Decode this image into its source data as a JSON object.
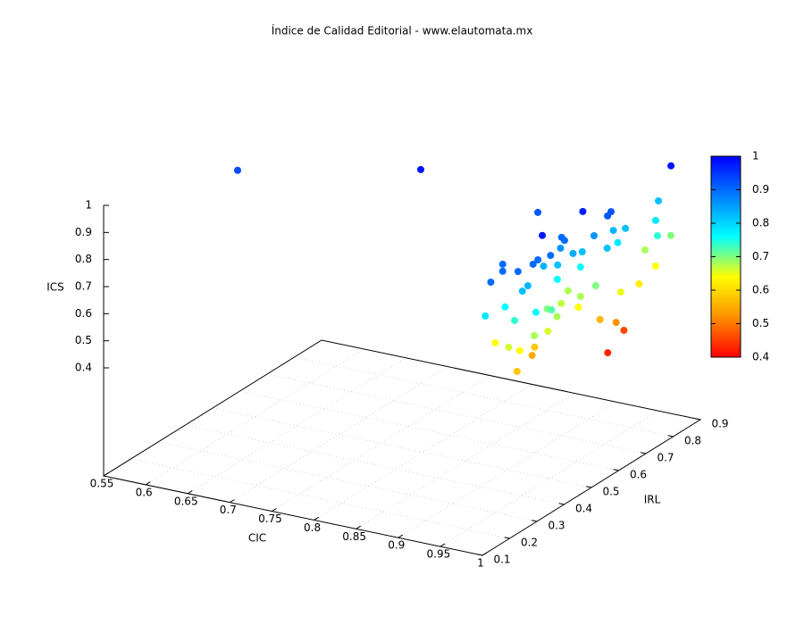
{
  "chart_data": {
    "type": "scatter3d",
    "title": "Índice de Calidad Editorial - www.elautomata.mx",
    "xlabel": "CIC",
    "ylabel": "IRL",
    "zlabel": "ICS",
    "x": [
      0.592,
      0.773,
      0.99,
      0.967,
      0.977,
      0.985,
      0.981,
      0.988,
      0.991,
      0.982,
      0.987,
      0.988,
      0.984,
      0.998,
      0.971,
      0.977,
      0.975,
      0.979,
      0.982,
      0.973,
      0.915,
      0.975,
      0.973,
      0.975,
      0.989,
      0.969,
      0.986,
      0.98,
      0.978,
      0.961,
      0.969,
      0.988,
      0.976,
      0.993,
      0.973,
      0.971,
      0.992,
      0.955,
      0.981,
      0.988,
      0.962,
      0.959,
      0.979,
      0.965,
      0.95,
      0.96,
      0.974,
      0.976,
      0.975,
      0.977,
      0.975,
      0.98,
      0.964,
      0.971,
      0.963,
      0.962,
      0.969,
      0.974,
      0.972,
      0.966,
      0.994,
      0.989,
      0.995
    ],
    "y": [
      0.462,
      0.575,
      0.823,
      0.848,
      0.807,
      0.789,
      0.85,
      0.773,
      0.703,
      0.675,
      0.631,
      0.597,
      0.581,
      0.614,
      0.786,
      0.696,
      0.674,
      0.637,
      0.615,
      0.552,
      0.566,
      0.397,
      0.664,
      0.587,
      0.592,
      0.556,
      0.559,
      0.522,
      0.52,
      0.535,
      0.485,
      0.411,
      0.412,
      0.362,
      0.375,
      0.372,
      0.252,
      0.286,
      0.255,
      0.274,
      0.228,
      0.31,
      0.283,
      0.239,
      0.329,
      0.298,
      0.311,
      0.341,
      0.324,
      0.357,
      0.381,
      0.412,
      0.502,
      0.491,
      0.501,
      0.442,
      0.472,
      0.513,
      0.553,
      0.48,
      0.315,
      0.388,
      0.306
    ],
    "z": [
      0.93,
      0.98,
      0.98,
      0.82,
      0.78,
      0.74,
      0.7,
      0.64,
      0.62,
      0.46,
      0.52,
      0.43,
      0.56,
      0.65,
      0.68,
      0.82,
      0.78,
      0.92,
      0.92,
      0.97,
      0.92,
      0.98,
      0.83,
      0.86,
      0.82,
      0.76,
      0.7,
      0.68,
      0.64,
      0.68,
      0.67,
      0.68,
      0.7,
      0.66,
      0.58,
      0.55,
      0.58,
      0.64,
      0.66,
      0.64,
      0.78,
      0.76,
      0.74,
      0.9,
      0.9,
      0.9,
      0.9,
      0.83,
      0.82,
      0.9,
      0.9,
      0.9,
      0.9,
      0.9,
      0.86,
      0.83,
      0.82,
      0.84,
      0.82,
      0.76,
      0.76,
      0.72,
      0.68
    ],
    "xlim": [
      0.55,
      1
    ],
    "ylim": [
      0.1,
      0.9
    ],
    "zlim": [
      0.4,
      1
    ],
    "xticks": [
      0.55,
      0.6,
      0.65,
      0.7,
      0.75,
      0.8,
      0.85,
      0.9,
      0.95,
      1
    ],
    "yticks": [
      0.1,
      0.2,
      0.3,
      0.4,
      0.5,
      0.6,
      0.7,
      0.8,
      0.9
    ],
    "zticks": [
      0.4,
      0.5,
      0.6,
      0.7,
      0.8,
      0.9,
      1
    ],
    "cblim": [
      0.4,
      1
    ],
    "cbticks": [
      0.4,
      0.5,
      0.6,
      0.7,
      0.8,
      0.9,
      1
    ],
    "palette": [
      "#ff0000",
      "#ff9000",
      "#ffff00",
      "#00ffff",
      "#0080ff",
      "#0000ff"
    ],
    "grid": true
  }
}
